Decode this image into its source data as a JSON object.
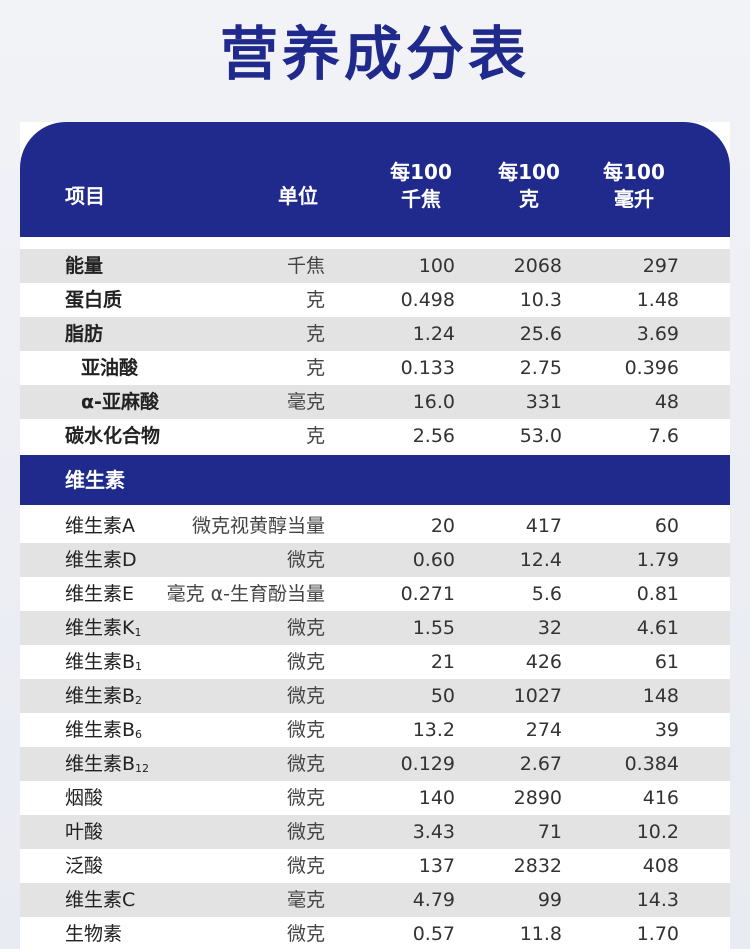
{
  "title": "营养成分表",
  "header": {
    "item": "项目",
    "unit": "单位",
    "col1": [
      "每100",
      "千焦"
    ],
    "col2": [
      "每100",
      "克"
    ],
    "col3": [
      "每100",
      "毫升"
    ]
  },
  "rows_main": [
    {
      "name": "能量",
      "unit": "千焦",
      "v1": "100",
      "v2": "2068",
      "v3": "297",
      "style": "bold",
      "shade": true
    },
    {
      "name": "蛋白质",
      "unit": "克",
      "v1": "0.498",
      "v2": "10.3",
      "v3": "1.48",
      "style": "bold",
      "shade": false
    },
    {
      "name": "脂肪",
      "unit": "克",
      "v1": "1.24",
      "v2": "25.6",
      "v3": "3.69",
      "style": "bold",
      "shade": true
    },
    {
      "name": "亚油酸",
      "unit": "克",
      "v1": "0.133",
      "v2": "2.75",
      "v3": "0.396",
      "style": "indent",
      "shade": false
    },
    {
      "name": "α-亚麻酸",
      "unit": "毫克",
      "v1": "16.0",
      "v2": "331",
      "v3": "48",
      "style": "indent",
      "shade": true
    },
    {
      "name": "碳水化合物",
      "unit": "克",
      "v1": "2.56",
      "v2": "53.0",
      "v3": "7.6",
      "style": "bold",
      "shade": false
    }
  ],
  "section_vitamins": "维生素",
  "rows_vitamins": [
    {
      "name": "维生素A",
      "sub": "",
      "unit": "微克视黄醇当量",
      "v1": "20",
      "v2": "417",
      "v3": "60",
      "shade": false
    },
    {
      "name": "维生素D",
      "sub": "",
      "unit": "微克",
      "v1": "0.60",
      "v2": "12.4",
      "v3": "1.79",
      "shade": true
    },
    {
      "name": "维生素E",
      "sub": "",
      "unit": "毫克 α-生育酚当量",
      "v1": "0.271",
      "v2": "5.6",
      "v3": "0.81",
      "shade": false
    },
    {
      "name": "维生素K",
      "sub": "1",
      "unit": "微克",
      "v1": "1.55",
      "v2": "32",
      "v3": "4.61",
      "shade": true
    },
    {
      "name": "维生素B",
      "sub": "1",
      "unit": "微克",
      "v1": "21",
      "v2": "426",
      "v3": "61",
      "shade": false
    },
    {
      "name": "维生素B",
      "sub": "2",
      "unit": "微克",
      "v1": "50",
      "v2": "1027",
      "v3": "148",
      "shade": true
    },
    {
      "name": "维生素B",
      "sub": "6",
      "unit": "微克",
      "v1": "13.2",
      "v2": "274",
      "v3": "39",
      "shade": false
    },
    {
      "name": "维生素B",
      "sub": "12",
      "unit": "微克",
      "v1": "0.129",
      "v2": "2.67",
      "v3": "0.384",
      "shade": true
    },
    {
      "name": "烟酸",
      "sub": "",
      "unit": "微克",
      "v1": "140",
      "v2": "2890",
      "v3": "416",
      "shade": false
    },
    {
      "name": "叶酸",
      "sub": "",
      "unit": "微克",
      "v1": "3.43",
      "v2": "71",
      "v3": "10.2",
      "shade": true
    },
    {
      "name": "泛酸",
      "sub": "",
      "unit": "微克",
      "v1": "137",
      "v2": "2832",
      "v3": "408",
      "shade": false
    },
    {
      "name": "维生素C",
      "sub": "",
      "unit": "毫克",
      "v1": "4.79",
      "v2": "99",
      "v3": "14.3",
      "shade": true
    },
    {
      "name": "生物素",
      "sub": "",
      "unit": "微克",
      "v1": "0.57",
      "v2": "11.8",
      "v3": "1.70",
      "shade": false
    }
  ]
}
